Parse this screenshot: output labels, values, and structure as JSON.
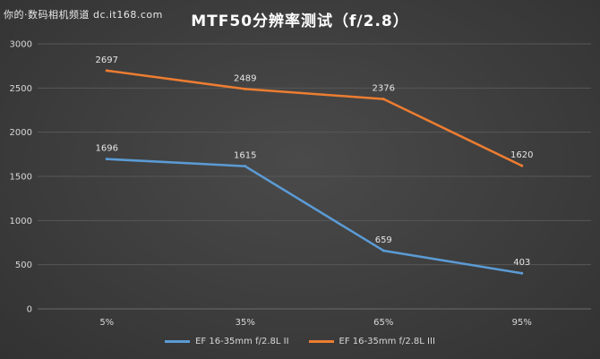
{
  "watermark": "你的·数码相机频道 dc.it168.com",
  "chart_data": {
    "type": "line",
    "title": "MTF50分辨率测试（f/2.8）",
    "xlabel": "",
    "ylabel": "",
    "categories": [
      "5%",
      "35%",
      "65%",
      "95%"
    ],
    "ylim": [
      0,
      3000
    ],
    "yticks": [
      0,
      500,
      1000,
      1500,
      2000,
      2500,
      3000
    ],
    "grid": true,
    "legend_position": "bottom",
    "series": [
      {
        "name": "EF 16-35mm f/2.8L II",
        "color": "#5b9bd5",
        "values": [
          1696,
          1615,
          659,
          403
        ]
      },
      {
        "name": "EF 16-35mm f/2.8L III",
        "color": "#ed7d31",
        "values": [
          2697,
          2489,
          2376,
          1620
        ]
      }
    ]
  }
}
